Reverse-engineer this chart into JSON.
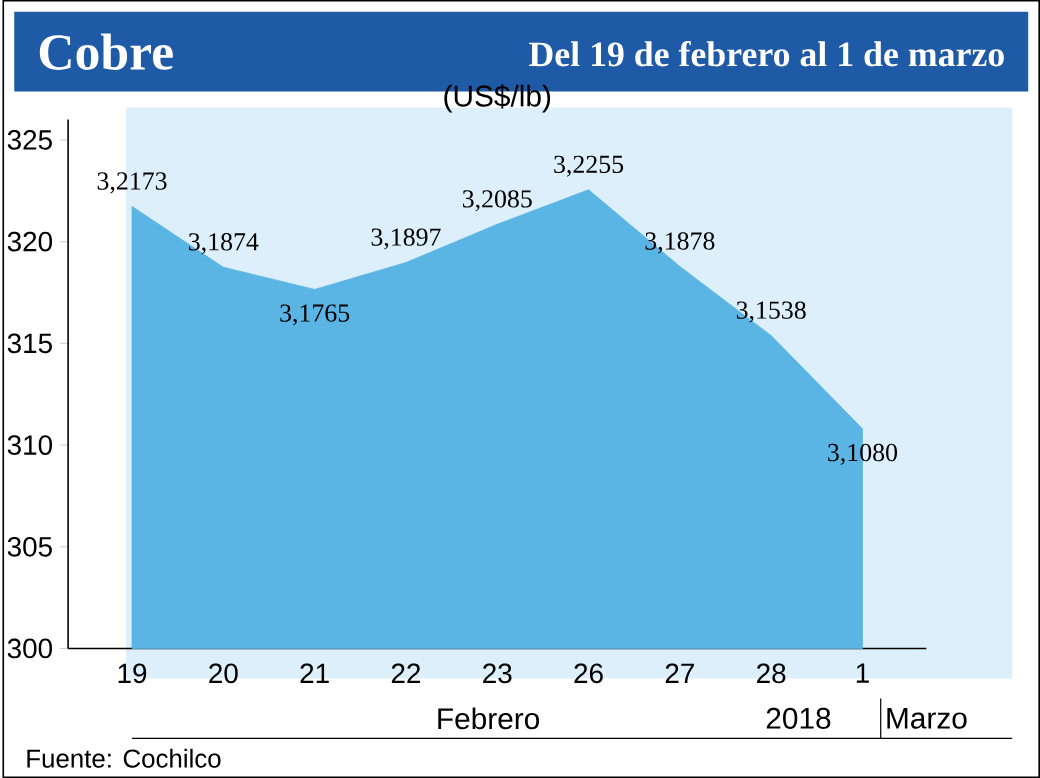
{
  "chart_data": {
    "type": "area",
    "title": "Cobre",
    "subtitle": "Del 19 de febrero al 1 de marzo",
    "ylabel": "(US$/lb)",
    "categories": [
      "19",
      "20",
      "21",
      "22",
      "23",
      "26",
      "27",
      "28",
      "1"
    ],
    "values": [
      321.73,
      318.74,
      317.65,
      318.97,
      320.85,
      322.55,
      318.78,
      315.38,
      310.8
    ],
    "value_labels": [
      "3,2173",
      "3,1874",
      "3,1765",
      "3,1897",
      "3,2085",
      "3,2255",
      "3,1878",
      "3,1538",
      "3,1080"
    ],
    "color": "#5ab5e4",
    "ylim": [
      300,
      326
    ],
    "yticks": [
      300,
      305,
      310,
      315,
      320,
      325
    ],
    "annotations": [
      "Febrero",
      "2018",
      "Marzo",
      "Fuente: Cochilco"
    ]
  }
}
